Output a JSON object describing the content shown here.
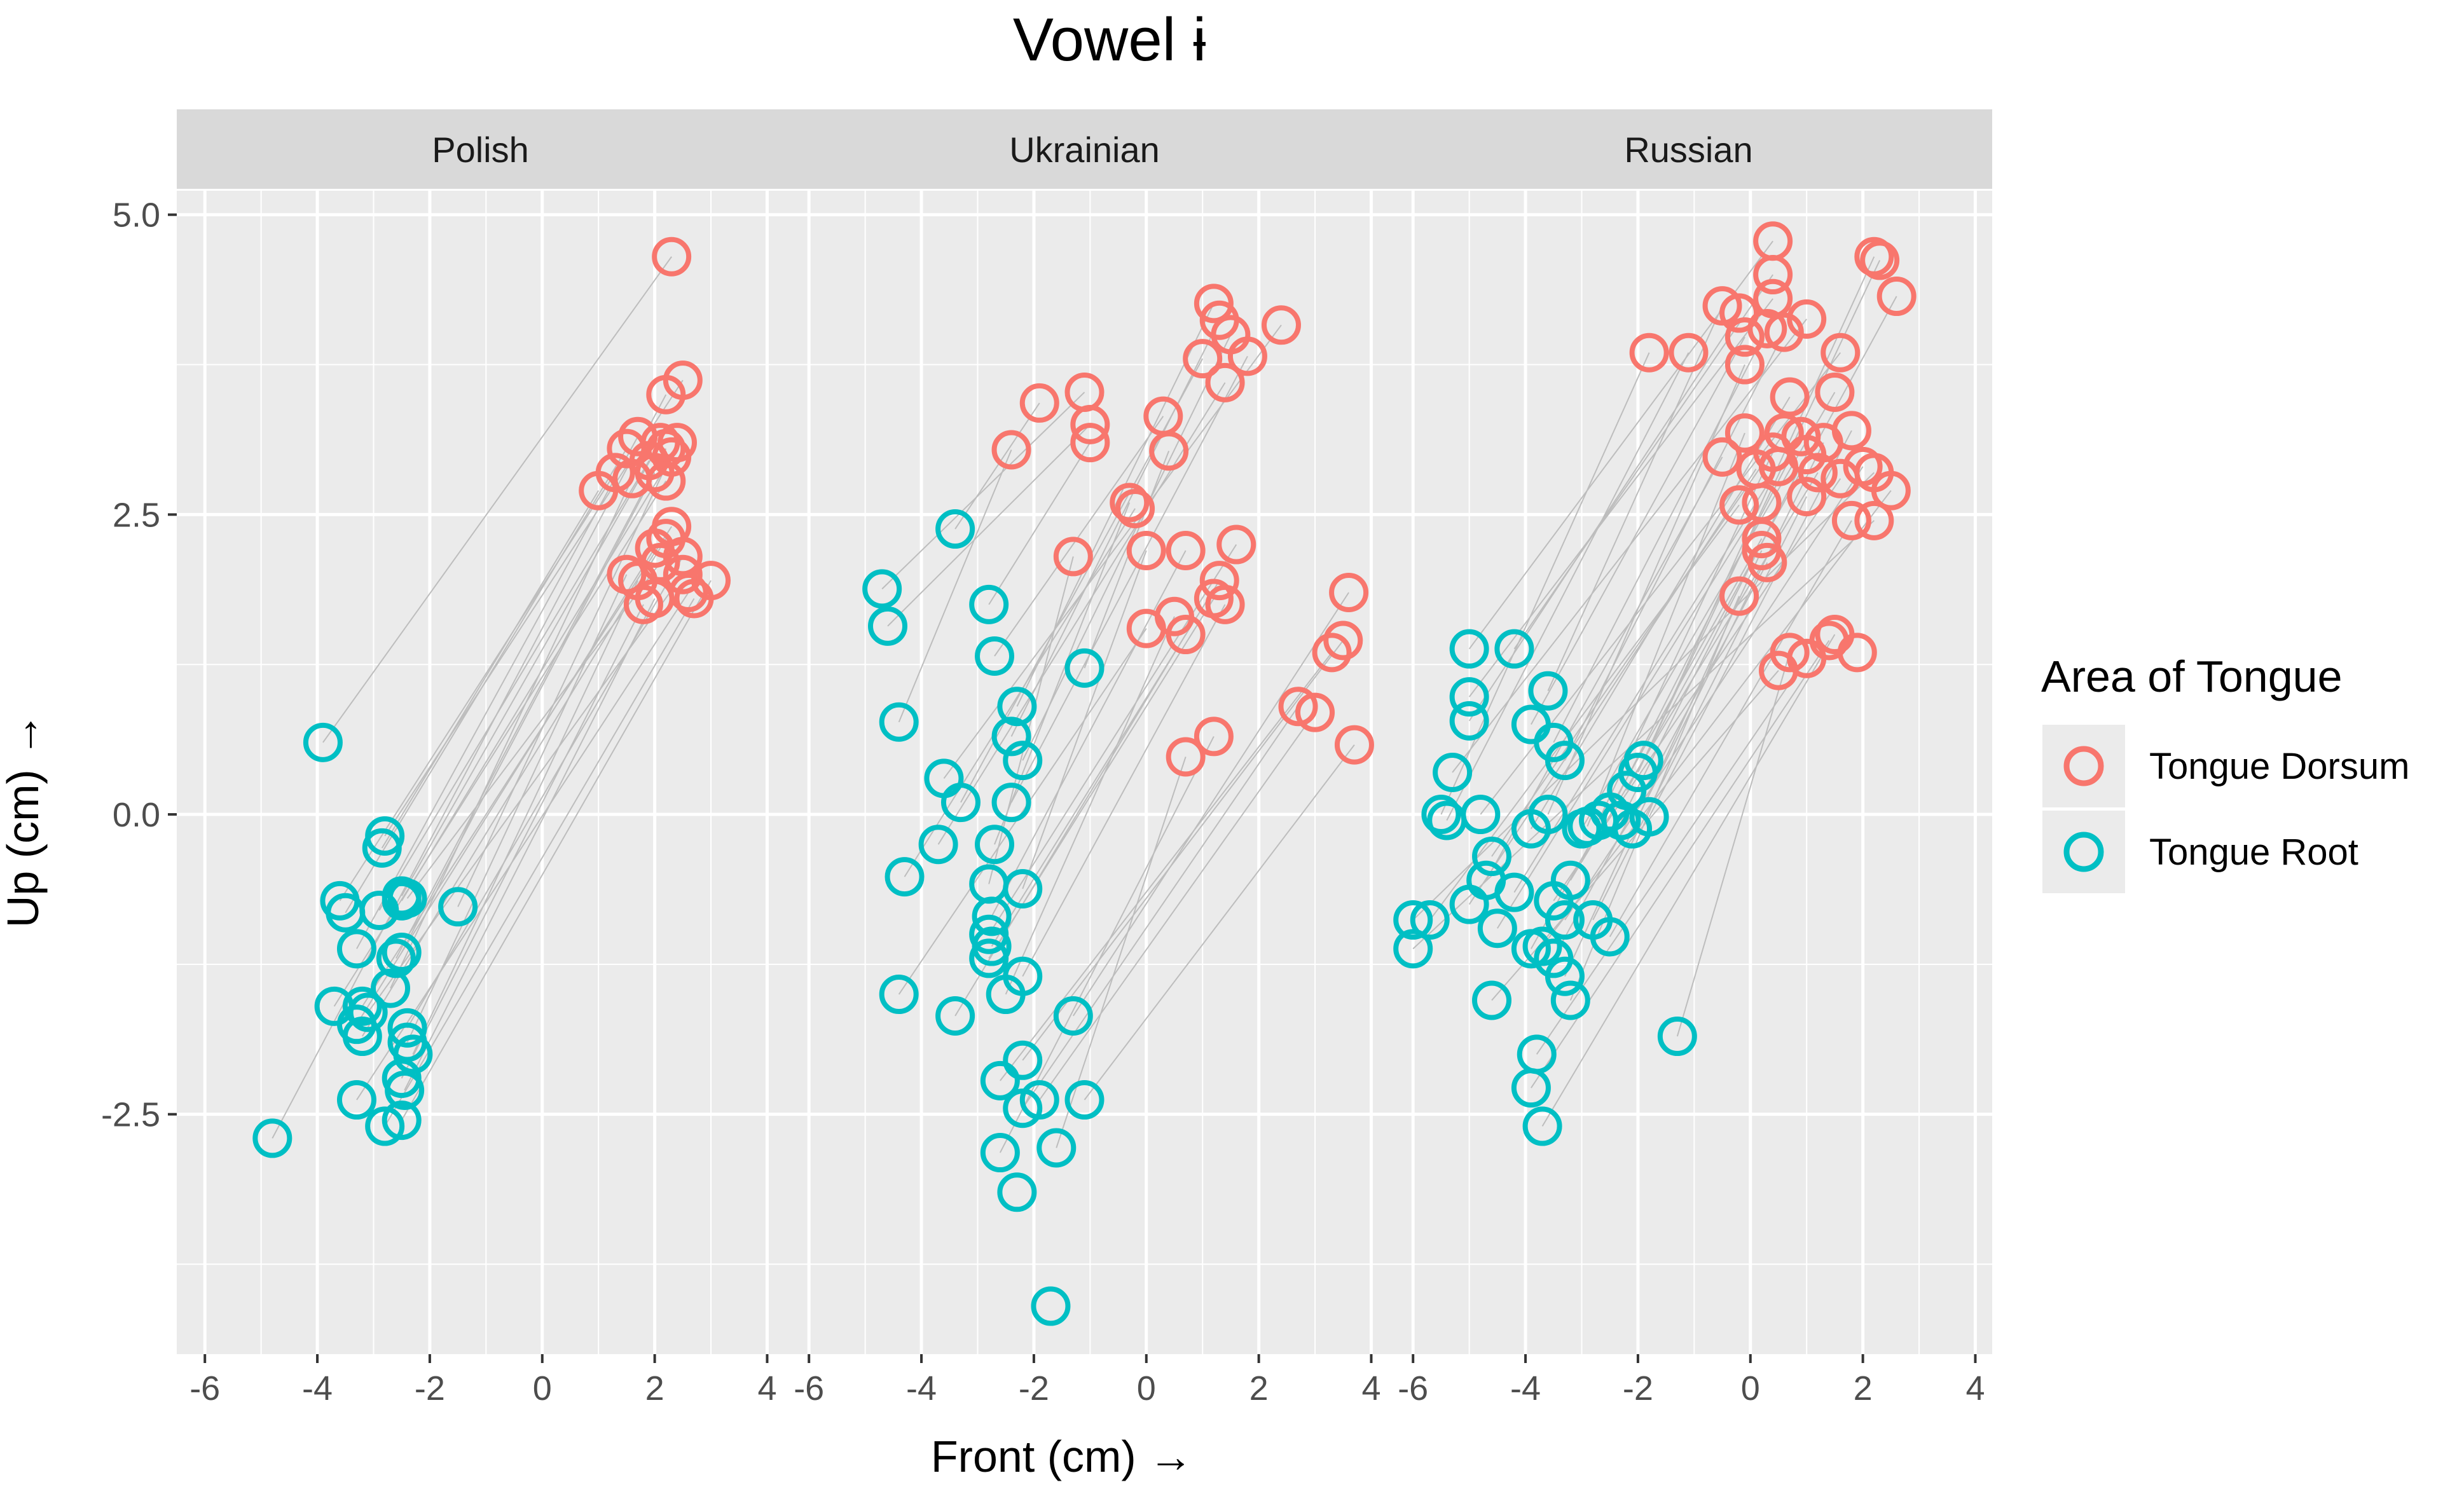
{
  "chart_data": {
    "type": "scatter",
    "title": "Vowel ɨ",
    "xlabel": "Front (cm) →",
    "ylabel": "Up (cm) →",
    "xlim": [
      -6.5,
      4.3
    ],
    "ylim": [
      -4.5,
      5.2
    ],
    "x_ticks": [
      -6,
      -4,
      -2,
      0,
      2,
      4
    ],
    "x_tick_labels": [
      "-6",
      "-4",
      "-2",
      "0",
      "2",
      "4"
    ],
    "y_ticks": [
      -2.5,
      0,
      2.5,
      5
    ],
    "y_tick_labels": [
      "-2.5",
      "0.0",
      "2.5",
      "5.0"
    ],
    "grid": true,
    "legend": {
      "title": "Area of Tongue",
      "position": "right",
      "entries": [
        {
          "label": "Tongue Dorsum",
          "color": "#F8766D"
        },
        {
          "label": "Tongue Root",
          "color": "#00BFC4"
        }
      ]
    },
    "colors": {
      "dorsum": "#F8766D",
      "root": "#00BFC4",
      "link": "#bdbdbd",
      "panel_bg": "#EBEBEB",
      "strip_bg": "#D9D9D9"
    },
    "panels": [
      {
        "name": "Polish",
        "dorsum": [
          [
            2.3,
            4.65
          ],
          [
            2.2,
            3.5
          ],
          [
            2.5,
            3.62
          ],
          [
            1.0,
            2.7
          ],
          [
            1.3,
            2.85
          ],
          [
            1.5,
            3.05
          ],
          [
            1.7,
            3.15
          ],
          [
            1.9,
            2.95
          ],
          [
            2.1,
            3.1
          ],
          [
            2.3,
            2.98
          ],
          [
            2.4,
            3.1
          ],
          [
            2.0,
            2.85
          ],
          [
            2.2,
            3.05
          ],
          [
            1.6,
            2.8
          ],
          [
            2.2,
            2.78
          ],
          [
            2.3,
            2.4
          ],
          [
            2.2,
            2.3
          ],
          [
            2.0,
            2.22
          ],
          [
            2.5,
            2.15
          ],
          [
            1.5,
            2.0
          ],
          [
            1.7,
            1.95
          ],
          [
            1.8,
            1.75
          ],
          [
            2.0,
            1.8
          ],
          [
            2.6,
            1.85
          ],
          [
            2.7,
            1.8
          ],
          [
            3.0,
            1.95
          ],
          [
            2.5,
            2.0
          ],
          [
            2.1,
            2.1
          ]
        ],
        "root": [
          [
            -3.9,
            0.6
          ],
          [
            -4.8,
            -2.7
          ],
          [
            -2.8,
            -0.18
          ],
          [
            -2.85,
            -0.28
          ],
          [
            -3.6,
            -0.72
          ],
          [
            -3.5,
            -0.82
          ],
          [
            -3.3,
            -1.12
          ],
          [
            -2.9,
            -0.8
          ],
          [
            -2.5,
            -0.68
          ],
          [
            -2.5,
            -0.72
          ],
          [
            -1.5,
            -0.77
          ],
          [
            -2.5,
            -1.15
          ],
          [
            -2.6,
            -1.2
          ],
          [
            -2.7,
            -1.45
          ],
          [
            -3.7,
            -1.6
          ],
          [
            -3.2,
            -1.6
          ],
          [
            -3.2,
            -1.85
          ],
          [
            -3.3,
            -1.75
          ],
          [
            -2.4,
            -1.78
          ],
          [
            -2.4,
            -1.9
          ],
          [
            -2.3,
            -2.0
          ],
          [
            -2.5,
            -2.2
          ],
          [
            -2.45,
            -2.3
          ],
          [
            -3.3,
            -2.38
          ],
          [
            -2.8,
            -2.6
          ],
          [
            -2.5,
            -2.55
          ],
          [
            -3.1,
            -1.65
          ],
          [
            -2.4,
            -0.7
          ]
        ]
      },
      {
        "name": "Ukrainian",
        "dorsum": [
          [
            -1.9,
            3.43
          ],
          [
            -1.1,
            3.52
          ],
          [
            -1.0,
            3.25
          ],
          [
            -1.0,
            3.1
          ],
          [
            0.3,
            3.32
          ],
          [
            0.4,
            3.03
          ],
          [
            -2.4,
            3.04
          ],
          [
            1.2,
            4.26
          ],
          [
            1.3,
            4.12
          ],
          [
            1.5,
            4.0
          ],
          [
            2.4,
            4.08
          ],
          [
            1.0,
            3.8
          ],
          [
            1.8,
            3.82
          ],
          [
            1.4,
            3.6
          ],
          [
            -0.3,
            2.6
          ],
          [
            -0.2,
            2.55
          ],
          [
            -1.3,
            2.15
          ],
          [
            0.0,
            2.2
          ],
          [
            0.7,
            2.2
          ],
          [
            1.6,
            2.25
          ],
          [
            1.3,
            1.95
          ],
          [
            1.2,
            1.8
          ],
          [
            1.4,
            1.75
          ],
          [
            0.5,
            1.65
          ],
          [
            0.0,
            1.55
          ],
          [
            0.7,
            1.5
          ],
          [
            3.6,
            1.85
          ],
          [
            3.5,
            1.45
          ],
          [
            3.3,
            1.35
          ],
          [
            2.7,
            0.9
          ],
          [
            3.0,
            0.85
          ],
          [
            3.7,
            0.58
          ],
          [
            1.2,
            0.65
          ],
          [
            0.7,
            0.48
          ]
        ],
        "root": [
          [
            -3.4,
            2.38
          ],
          [
            -4.7,
            1.88
          ],
          [
            -4.6,
            1.57
          ],
          [
            -2.8,
            1.75
          ],
          [
            -2.7,
            1.32
          ],
          [
            -1.1,
            1.22
          ],
          [
            -4.4,
            0.77
          ],
          [
            -2.3,
            0.9
          ],
          [
            -2.4,
            0.65
          ],
          [
            -2.2,
            0.45
          ],
          [
            -3.6,
            0.3
          ],
          [
            -3.3,
            0.1
          ],
          [
            -2.4,
            0.1
          ],
          [
            -3.7,
            -0.25
          ],
          [
            -2.7,
            -0.25
          ],
          [
            -4.3,
            -0.52
          ],
          [
            -2.8,
            -0.58
          ],
          [
            -2.2,
            -0.62
          ],
          [
            -2.75,
            -0.85
          ],
          [
            -2.8,
            -1.0
          ],
          [
            -2.75,
            -1.1
          ],
          [
            -2.8,
            -1.2
          ],
          [
            -2.2,
            -1.35
          ],
          [
            -2.5,
            -1.5
          ],
          [
            -4.4,
            -1.5
          ],
          [
            -3.4,
            -1.68
          ],
          [
            -1.3,
            -1.68
          ],
          [
            -2.2,
            -2.05
          ],
          [
            -2.6,
            -2.22
          ],
          [
            -2.2,
            -2.45
          ],
          [
            -1.9,
            -2.38
          ],
          [
            -1.1,
            -2.38
          ],
          [
            -2.6,
            -2.82
          ],
          [
            -1.6,
            -2.78
          ],
          [
            -2.3,
            -3.15
          ],
          [
            -1.7,
            -4.1
          ]
        ]
      },
      {
        "name": "Russian",
        "dorsum": [
          [
            0.4,
            4.78
          ],
          [
            0.4,
            4.5
          ],
          [
            0.4,
            4.3
          ],
          [
            -0.5,
            4.24
          ],
          [
            -0.2,
            4.18
          ],
          [
            -0.1,
            3.98
          ],
          [
            0.3,
            4.05
          ],
          [
            0.6,
            4.02
          ],
          [
            1.0,
            4.13
          ],
          [
            2.2,
            4.65
          ],
          [
            2.3,
            4.62
          ],
          [
            2.6,
            4.32
          ],
          [
            -1.8,
            3.85
          ],
          [
            -1.1,
            3.85
          ],
          [
            1.6,
            3.85
          ],
          [
            -0.1,
            3.75
          ],
          [
            0.7,
            3.48
          ],
          [
            1.5,
            3.52
          ],
          [
            -0.1,
            3.18
          ],
          [
            0.4,
            3.02
          ],
          [
            0.9,
            3.15
          ],
          [
            1.0,
            3.0
          ],
          [
            1.3,
            3.1
          ],
          [
            1.8,
            3.2
          ],
          [
            0.6,
            3.18
          ],
          [
            -0.5,
            2.98
          ],
          [
            0.1,
            2.88
          ],
          [
            0.5,
            2.9
          ],
          [
            1.2,
            2.85
          ],
          [
            1.6,
            2.8
          ],
          [
            2.0,
            2.9
          ],
          [
            2.2,
            2.85
          ],
          [
            -0.2,
            2.58
          ],
          [
            0.2,
            2.6
          ],
          [
            1.0,
            2.65
          ],
          [
            1.8,
            2.45
          ],
          [
            2.2,
            2.45
          ],
          [
            2.5,
            2.7
          ],
          [
            0.2,
            2.3
          ],
          [
            0.3,
            2.1
          ],
          [
            0.2,
            2.2
          ],
          [
            -0.2,
            1.82
          ],
          [
            0.5,
            1.2
          ],
          [
            0.7,
            1.35
          ],
          [
            1.0,
            1.3
          ],
          [
            1.4,
            1.45
          ],
          [
            1.5,
            1.5
          ],
          [
            1.9,
            1.35
          ]
        ],
        "root": [
          [
            -5.0,
            1.38
          ],
          [
            -4.2,
            1.38
          ],
          [
            -5.0,
            0.98
          ],
          [
            -3.6,
            1.03
          ],
          [
            -5.0,
            0.78
          ],
          [
            -3.9,
            0.75
          ],
          [
            -3.5,
            0.6
          ],
          [
            -3.3,
            0.45
          ],
          [
            -5.3,
            0.35
          ],
          [
            -1.9,
            0.45
          ],
          [
            -2.0,
            0.35
          ],
          [
            -2.2,
            0.2
          ],
          [
            -5.5,
            0.0
          ],
          [
            -5.4,
            -0.05
          ],
          [
            -4.8,
            0.0
          ],
          [
            -3.6,
            0.0
          ],
          [
            -3.9,
            -0.12
          ],
          [
            -3.0,
            -0.12
          ],
          [
            -2.9,
            -0.1
          ],
          [
            -2.7,
            -0.05
          ],
          [
            -2.5,
            0.02
          ],
          [
            -2.3,
            -0.05
          ],
          [
            -2.1,
            -0.12
          ],
          [
            -1.8,
            -0.02
          ],
          [
            -4.6,
            -0.35
          ],
          [
            -4.7,
            -0.55
          ],
          [
            -5.0,
            -0.75
          ],
          [
            -4.2,
            -0.65
          ],
          [
            -3.2,
            -0.55
          ],
          [
            -3.5,
            -0.72
          ],
          [
            -3.3,
            -0.88
          ],
          [
            -6.0,
            -0.88
          ],
          [
            -5.7,
            -0.88
          ],
          [
            -4.5,
            -0.95
          ],
          [
            -2.8,
            -0.88
          ],
          [
            -2.5,
            -1.02
          ],
          [
            -6.0,
            -1.12
          ],
          [
            -3.7,
            -1.1
          ],
          [
            -3.9,
            -1.12
          ],
          [
            -3.5,
            -1.2
          ],
          [
            -3.3,
            -1.35
          ],
          [
            -3.2,
            -1.55
          ],
          [
            -4.6,
            -1.55
          ],
          [
            -1.3,
            -1.85
          ],
          [
            -3.8,
            -2.0
          ],
          [
            -3.9,
            -2.28
          ],
          [
            -3.7,
            -2.6
          ]
        ]
      }
    ]
  }
}
